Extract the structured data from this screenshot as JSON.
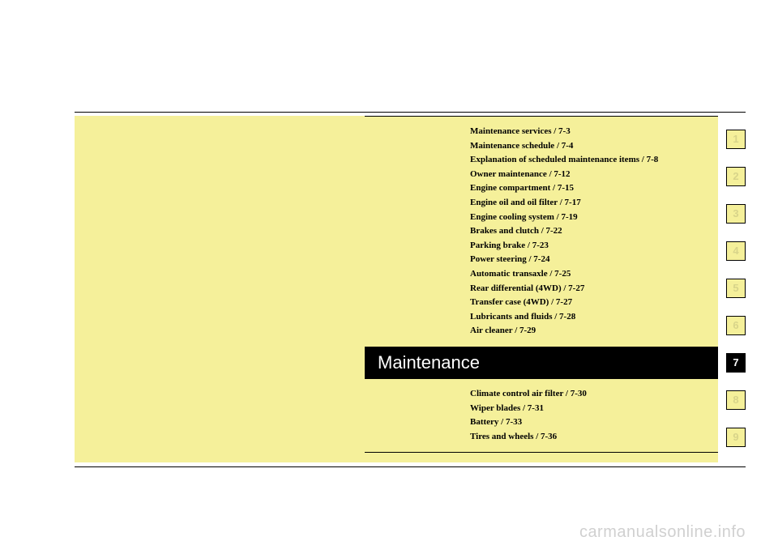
{
  "title": "Maintenance",
  "active_tab": 7,
  "tabs": [
    "1",
    "2",
    "3",
    "4",
    "5",
    "6",
    "7",
    "8",
    "9"
  ],
  "upper_items": [
    "Maintenance services / 7-3",
    "Maintenance schedule / 7-4",
    "Explanation of scheduled maintenance items / 7-8",
    "Owner maintenance / 7-12",
    "Engine compartment / 7-15",
    "Engine oil and oil filter / 7-17",
    "Engine cooling system / 7-19",
    "Brakes and clutch / 7-22",
    "Parking brake / 7-23",
    "Power steering / 7-24",
    "Automatic transaxle / 7-25",
    "Rear differential (4WD) / 7-27",
    "Transfer case (4WD) / 7-27",
    "Lubricants and fluids / 7-28",
    "Air cleaner / 7-29"
  ],
  "lower_items": [
    "Climate control air filter / 7-30",
    "Wiper blades / 7-31",
    "Battery / 7-33",
    "Tires and wheels / 7-36"
  ],
  "watermark": "carmanualsonline.info",
  "colors": {
    "page_bg": "#f5f09a",
    "tab_inactive_text": "#d8d48a",
    "watermark": "#d0d0d0"
  }
}
